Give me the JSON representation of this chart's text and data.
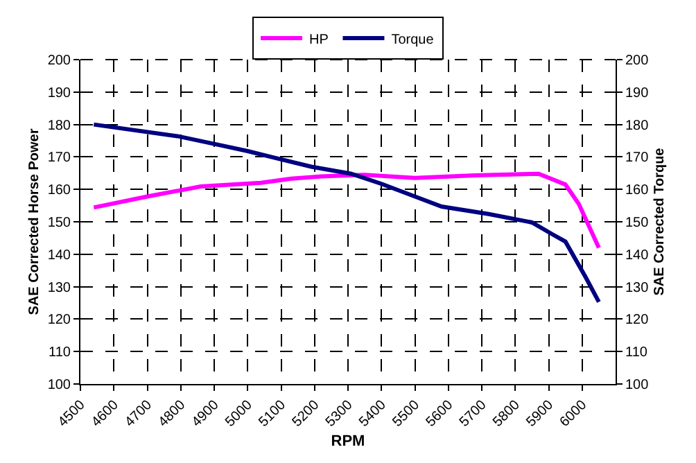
{
  "chart_data": {
    "type": "line",
    "xlabel": "RPM",
    "ylabel": "SAE Corrected Horse Power",
    "y2label": "SAE Corrected Torque",
    "xlim": [
      4500,
      6100
    ],
    "xticks": [
      4500,
      4600,
      4700,
      4800,
      4900,
      5000,
      5100,
      5200,
      5300,
      5400,
      5500,
      5600,
      5700,
      5800,
      5900,
      6000
    ],
    "ylim": [
      100,
      200
    ],
    "yticks": [
      100,
      110,
      120,
      130,
      140,
      150,
      160,
      170,
      180,
      190,
      200
    ],
    "y2lim": [
      100,
      200
    ],
    "y2ticks": [
      100,
      110,
      120,
      130,
      140,
      150,
      160,
      170,
      180,
      190,
      200
    ],
    "grid": true,
    "legend": "top",
    "marker": "none",
    "line_style": "solid",
    "series": [
      {
        "name": "HP",
        "color": "#ff00ff",
        "x": [
          4540,
          4700,
          4860,
          5040,
          5130,
          5220,
          5350,
          5500,
          5680,
          5870,
          5950,
          5990,
          6050
        ],
        "values": [
          154.4,
          157.8,
          160.9,
          162,
          163.3,
          164,
          164.5,
          163.5,
          164.3,
          164.8,
          161.5,
          155.5,
          142
        ]
      },
      {
        "name": "Torque",
        "color": "#000080",
        "axis": "y2",
        "x": [
          4540,
          4790,
          4900,
          5000,
          5070,
          5190,
          5310,
          5400,
          5500,
          5580,
          5720,
          5850,
          5910,
          5950,
          6010,
          6050
        ],
        "values": [
          180,
          176.4,
          174,
          171.8,
          170,
          167,
          164.8,
          161.7,
          157.8,
          154.7,
          152.4,
          149.8,
          146.2,
          143.9,
          133,
          125.3
        ]
      }
    ]
  }
}
